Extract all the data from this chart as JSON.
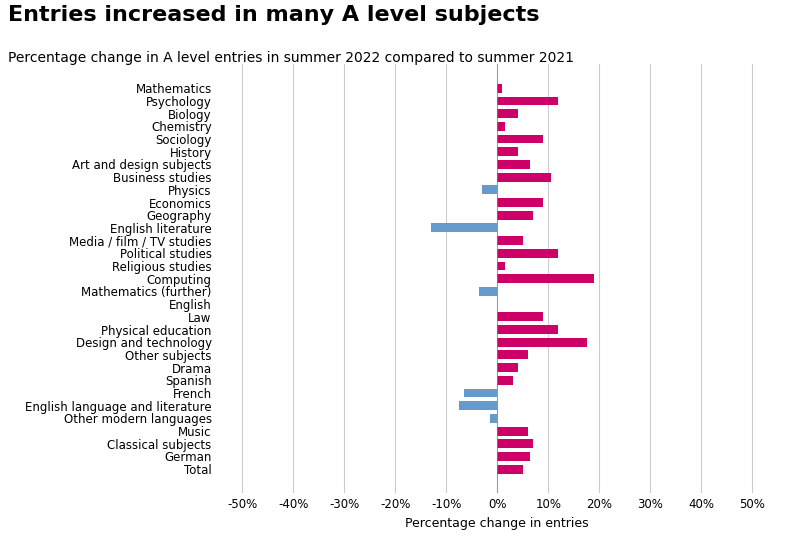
{
  "title": "Entries increased in many A level subjects",
  "subtitle": "Percentage change in A level entries in summer 2022 compared to summer 2021",
  "xlabel": "Percentage change in entries",
  "categories": [
    "Mathematics",
    "Psychology",
    "Biology",
    "Chemistry",
    "Sociology",
    "History",
    "Art and design subjects",
    "Business studies",
    "Physics",
    "Economics",
    "Geography",
    "English literature",
    "Media / film / TV studies",
    "Political studies",
    "Religious studies",
    "Computing",
    "Mathematics (further)",
    "English",
    "Law",
    "Physical education",
    "Design and technology",
    "Other subjects",
    "Drama",
    "Spanish",
    "French",
    "English language and literature",
    "Other modern languages",
    "Music",
    "Classical subjects",
    "German",
    "Total"
  ],
  "values": [
    1.0,
    12.0,
    4.0,
    1.5,
    9.0,
    4.0,
    6.5,
    10.5,
    -3.0,
    9.0,
    7.0,
    -13.0,
    5.0,
    12.0,
    1.5,
    19.0,
    -3.5,
    0.0,
    9.0,
    12.0,
    17.5,
    6.0,
    4.0,
    3.0,
    -6.5,
    -7.5,
    -1.5,
    6.0,
    7.0,
    6.5,
    5.0
  ],
  "bar_color_positive": "#CC0066",
  "bar_color_negative": "#6699CC",
  "background_color": "#FFFFFF",
  "grid_color": "#CCCCCC",
  "xlim": [
    -55,
    55
  ],
  "xticks": [
    -50,
    -40,
    -30,
    -20,
    -10,
    0,
    10,
    20,
    30,
    40,
    50
  ],
  "xtick_labels": [
    "-50%",
    "-40%",
    "-30%",
    "-20%",
    "-10%",
    "0%",
    "10%",
    "20%",
    "30%",
    "40%",
    "50%"
  ],
  "title_fontsize": 16,
  "subtitle_fontsize": 10,
  "label_fontsize": 8.5,
  "tick_fontsize": 8.5,
  "xlabel_fontsize": 9
}
